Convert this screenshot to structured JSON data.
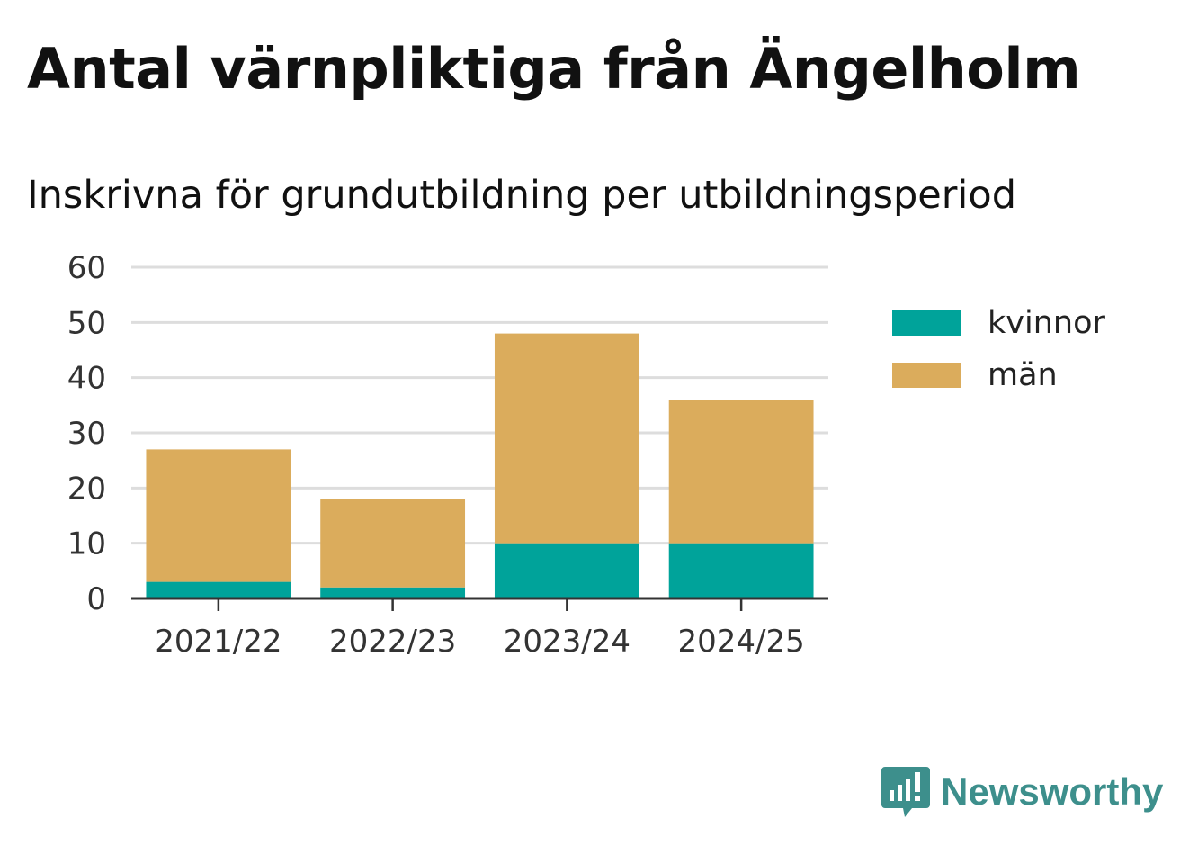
{
  "title": "Antal värnpliktiga från Ängelholm",
  "subtitle": "Inskrivna för grundutbildning per utbildningsperiod",
  "brand": {
    "name": "Newsworthy",
    "icon": "newsworthy-logo-icon",
    "color": "#3d8f8c"
  },
  "chart_data": {
    "type": "bar",
    "stacked": true,
    "categories": [
      "2021/22",
      "2022/23",
      "2023/24",
      "2024/25"
    ],
    "series": [
      {
        "name": "kvinnor",
        "color": "#00a39a",
        "values": [
          3,
          2,
          10,
          10
        ]
      },
      {
        "name": "män",
        "color": "#dbac5c",
        "values": [
          24,
          16,
          38,
          26
        ]
      }
    ],
    "ylim": [
      0,
      60
    ],
    "yticks": [
      0,
      10,
      20,
      30,
      40,
      50,
      60
    ],
    "grid": true,
    "legend_position": "right"
  }
}
